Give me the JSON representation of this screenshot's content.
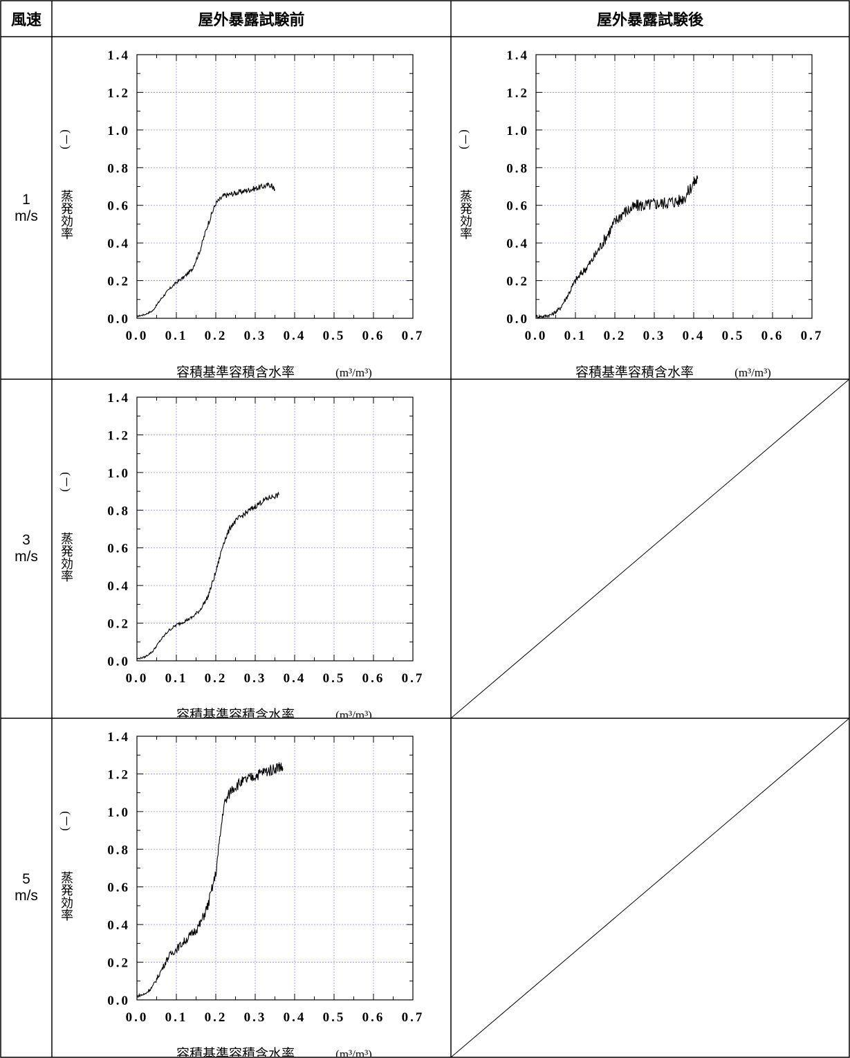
{
  "table": {
    "header": {
      "wind": "風速",
      "before": "屋外暴露試験前",
      "after": "屋外暴露試験後"
    },
    "rows": [
      {
        "value": "1",
        "unit": "m/s"
      },
      {
        "value": "3",
        "unit": "m/s"
      },
      {
        "value": "5",
        "unit": "m/s"
      }
    ]
  },
  "axes": {
    "ylabel": "蒸発効率",
    "yunit": "(－)",
    "xlabel": "容積基準容積含水率",
    "xunit": "(m³/m³)",
    "xticks": [
      "0.0",
      "0.1",
      "0.2",
      "0.3",
      "0.4",
      "0.5",
      "0.6",
      "0.7"
    ],
    "yticks": [
      "0.0",
      "0.2",
      "0.4",
      "0.6",
      "0.8",
      "1.0",
      "1.2",
      "1.4"
    ]
  },
  "colors": {
    "grid": "#8c8cf0",
    "line": "#000000",
    "border": "#000000"
  },
  "chart_data": [
    {
      "type": "line",
      "panel": "before-1ms",
      "xlim": [
        0,
        0.7
      ],
      "ylim": [
        0,
        1.4
      ],
      "grid": true,
      "series": [
        {
          "x": [
            0,
            0.02,
            0.04,
            0.06,
            0.08,
            0.1,
            0.12,
            0.14,
            0.16,
            0.18,
            0.2,
            0.22,
            0.24,
            0.26,
            0.28,
            0.3,
            0.32,
            0.34,
            0.35
          ],
          "y": [
            0.01,
            0.02,
            0.04,
            0.1,
            0.15,
            0.19,
            0.22,
            0.26,
            0.36,
            0.5,
            0.61,
            0.65,
            0.66,
            0.67,
            0.68,
            0.69,
            0.7,
            0.71,
            0.68
          ]
        }
      ]
    },
    {
      "type": "line",
      "panel": "after-1ms",
      "xlim": [
        0,
        0.7
      ],
      "ylim": [
        0,
        1.4
      ],
      "grid": true,
      "series": [
        {
          "x": [
            0,
            0.02,
            0.04,
            0.06,
            0.08,
            0.1,
            0.12,
            0.14,
            0.16,
            0.18,
            0.2,
            0.22,
            0.24,
            0.26,
            0.28,
            0.3,
            0.32,
            0.34,
            0.36,
            0.38,
            0.4,
            0.41
          ],
          "y": [
            0.01,
            0.01,
            0.02,
            0.05,
            0.12,
            0.2,
            0.25,
            0.3,
            0.37,
            0.44,
            0.51,
            0.56,
            0.58,
            0.6,
            0.6,
            0.61,
            0.61,
            0.62,
            0.62,
            0.65,
            0.72,
            0.74
          ]
        }
      ]
    },
    {
      "type": "line",
      "panel": "before-3ms",
      "xlim": [
        0,
        0.7
      ],
      "ylim": [
        0,
        1.4
      ],
      "grid": true,
      "series": [
        {
          "x": [
            0,
            0.02,
            0.04,
            0.06,
            0.08,
            0.1,
            0.12,
            0.14,
            0.16,
            0.18,
            0.2,
            0.22,
            0.24,
            0.26,
            0.28,
            0.3,
            0.32,
            0.34,
            0.36
          ],
          "y": [
            0.01,
            0.02,
            0.05,
            0.11,
            0.16,
            0.19,
            0.21,
            0.23,
            0.27,
            0.34,
            0.47,
            0.63,
            0.72,
            0.76,
            0.79,
            0.82,
            0.85,
            0.87,
            0.88
          ]
        }
      ]
    },
    {
      "type": "line",
      "panel": "before-5ms",
      "xlim": [
        0,
        0.7
      ],
      "ylim": [
        0,
        1.4
      ],
      "grid": true,
      "series": [
        {
          "x": [
            0,
            0.02,
            0.04,
            0.06,
            0.08,
            0.1,
            0.12,
            0.14,
            0.16,
            0.18,
            0.2,
            0.22,
            0.24,
            0.26,
            0.28,
            0.3,
            0.32,
            0.34,
            0.36,
            0.37
          ],
          "y": [
            0.02,
            0.03,
            0.07,
            0.15,
            0.23,
            0.27,
            0.31,
            0.35,
            0.4,
            0.5,
            0.67,
            1.03,
            1.12,
            1.15,
            1.17,
            1.19,
            1.21,
            1.22,
            1.24,
            1.23
          ]
        }
      ]
    }
  ]
}
